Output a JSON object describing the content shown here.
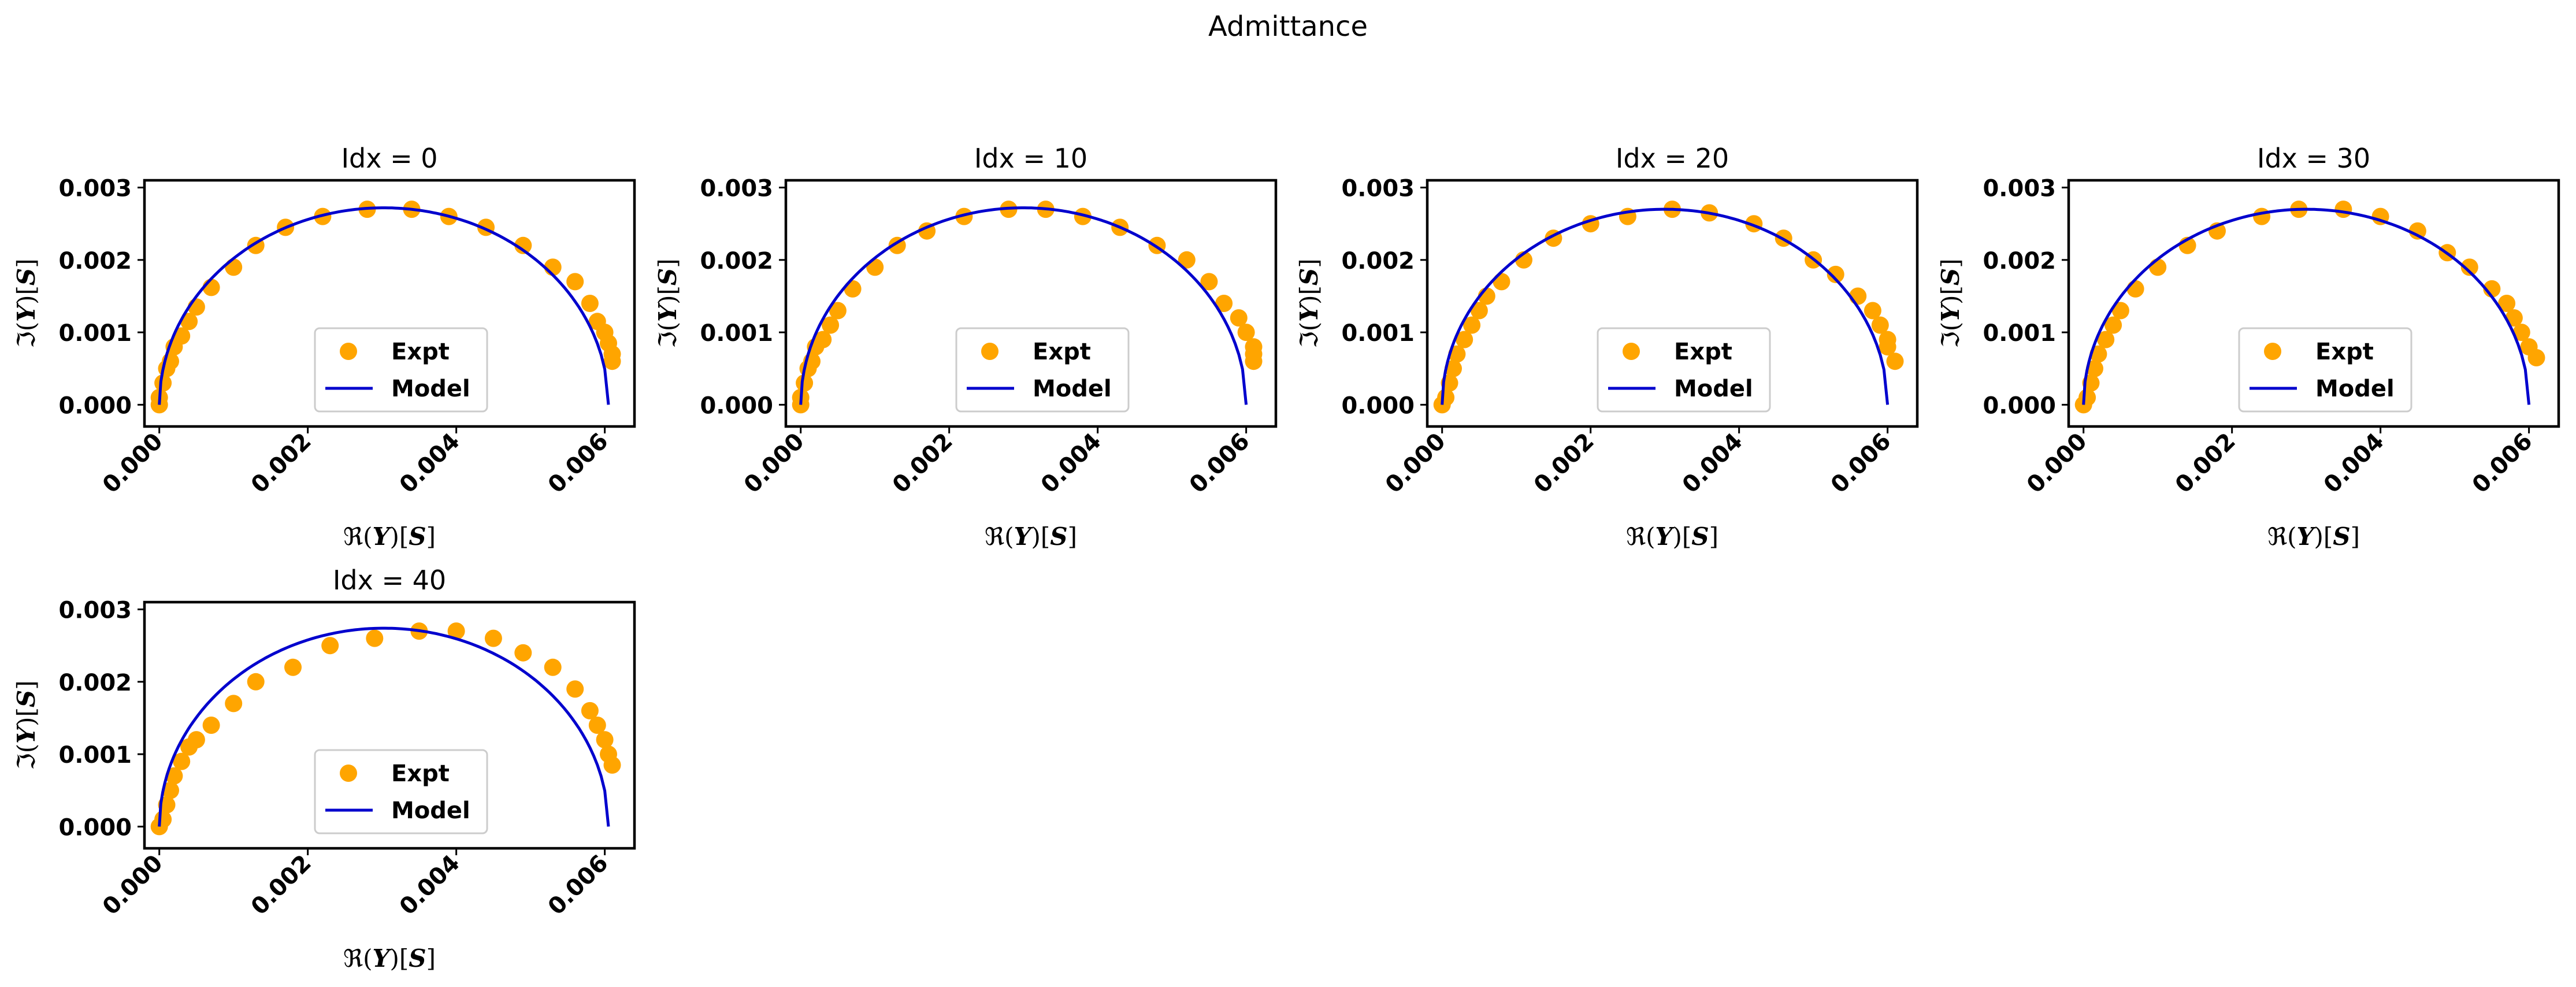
{
  "figure": {
    "title": "Admittance"
  },
  "colors": {
    "expt": "#FFA500",
    "model": "#0000CD",
    "axes": "#000000",
    "legend_border": "#cccccc"
  },
  "chart_data": [
    {
      "type": "scatter",
      "title": "Idx = 0",
      "xlabel": "ℜ(Y)[S]",
      "ylabel": "ℑ(Y)[S]",
      "xlim": [
        -0.0002,
        0.0064
      ],
      "ylim": [
        -0.0003,
        0.0031
      ],
      "xticks": [
        "0.000",
        "0.002",
        "0.004",
        "0.006"
      ],
      "yticks": [
        "0.000",
        "0.001",
        "0.002",
        "0.003"
      ],
      "legend": {
        "position": "lower-center",
        "entries": [
          "Expt",
          "Model"
        ]
      },
      "series": [
        {
          "name": "Expt",
          "kind": "points",
          "x": [
            0.0,
            0.0,
            5e-05,
            0.0001,
            0.00015,
            0.0002,
            0.0003,
            0.0004,
            0.0005,
            0.0007,
            0.001,
            0.0013,
            0.0017,
            0.0022,
            0.0028,
            0.0034,
            0.0039,
            0.0044,
            0.0049,
            0.0053,
            0.0056,
            0.0058,
            0.0059,
            0.006,
            0.00605,
            0.0061,
            0.0061
          ],
          "y": [
            0.0,
            0.0001,
            0.0003,
            0.0005,
            0.0006,
            0.0008,
            0.00095,
            0.00115,
            0.00135,
            0.00162,
            0.0019,
            0.0022,
            0.00245,
            0.0026,
            0.0027,
            0.0027,
            0.0026,
            0.00245,
            0.0022,
            0.0019,
            0.0017,
            0.0014,
            0.00115,
            0.001,
            0.00085,
            0.0007,
            0.0006
          ]
        },
        {
          "name": "Model",
          "kind": "line",
          "center": 0.003025,
          "radius": 0.003025,
          "y0": 0.00272,
          "x_end": 0.00605
        }
      ]
    },
    {
      "type": "scatter",
      "title": "Idx = 10",
      "xlabel": "ℜ(Y)[S]",
      "ylabel": "ℑ(Y)[S]",
      "xlim": [
        -0.0002,
        0.0064
      ],
      "ylim": [
        -0.0003,
        0.0031
      ],
      "xticks": [
        "0.000",
        "0.002",
        "0.004",
        "0.006"
      ],
      "yticks": [
        "0.000",
        "0.001",
        "0.002",
        "0.003"
      ],
      "legend": {
        "position": "lower-center",
        "entries": [
          "Expt",
          "Model"
        ]
      },
      "series": [
        {
          "name": "Expt",
          "kind": "points",
          "x": [
            0.0,
            0.0,
            5e-05,
            0.0001,
            0.00015,
            0.0002,
            0.0003,
            0.0004,
            0.0005,
            0.0007,
            0.001,
            0.0013,
            0.0017,
            0.0022,
            0.0028,
            0.0033,
            0.0038,
            0.0043,
            0.0048,
            0.0052,
            0.0055,
            0.0057,
            0.0059,
            0.006,
            0.0061,
            0.0061,
            0.0061
          ],
          "y": [
            0.0,
            0.0001,
            0.0003,
            0.0005,
            0.0006,
            0.0008,
            0.0009,
            0.0011,
            0.0013,
            0.0016,
            0.0019,
            0.0022,
            0.0024,
            0.0026,
            0.0027,
            0.0027,
            0.0026,
            0.00245,
            0.0022,
            0.002,
            0.0017,
            0.0014,
            0.0012,
            0.001,
            0.0008,
            0.0007,
            0.0006
          ]
        },
        {
          "name": "Model",
          "kind": "line",
          "center": 0.003,
          "radius": 0.003,
          "y0": 0.00272,
          "x_end": 0.006
        }
      ]
    },
    {
      "type": "scatter",
      "title": "Idx = 20",
      "xlabel": "ℜ(Y)[S]",
      "ylabel": "ℑ(Y)[S]",
      "xlim": [
        -0.0002,
        0.0064
      ],
      "ylim": [
        -0.0003,
        0.0031
      ],
      "xticks": [
        "0.000",
        "0.002",
        "0.004",
        "0.006"
      ],
      "yticks": [
        "0.000",
        "0.001",
        "0.002",
        "0.003"
      ],
      "legend": {
        "position": "lower-center",
        "entries": [
          "Expt",
          "Model"
        ]
      },
      "series": [
        {
          "name": "Expt",
          "kind": "points",
          "x": [
            0.0,
            5e-05,
            0.0001,
            0.00015,
            0.0002,
            0.0003,
            0.0004,
            0.0005,
            0.0006,
            0.0008,
            0.0011,
            0.0015,
            0.002,
            0.0025,
            0.0031,
            0.0036,
            0.0042,
            0.0046,
            0.005,
            0.0053,
            0.0056,
            0.0058,
            0.0059,
            0.006,
            0.006,
            0.0061
          ],
          "y": [
            0.0,
            0.0001,
            0.0003,
            0.0005,
            0.0007,
            0.0009,
            0.0011,
            0.0013,
            0.0015,
            0.0017,
            0.002,
            0.0023,
            0.0025,
            0.0026,
            0.0027,
            0.00265,
            0.0025,
            0.0023,
            0.002,
            0.0018,
            0.0015,
            0.0013,
            0.0011,
            0.0009,
            0.0008,
            0.0006
          ]
        },
        {
          "name": "Model",
          "kind": "line",
          "center": 0.003,
          "radius": 0.003,
          "y0": 0.0027,
          "x_end": 0.006
        }
      ]
    },
    {
      "type": "scatter",
      "title": "Idx = 30",
      "xlabel": "ℜ(Y)[S]",
      "ylabel": "ℑ(Y)[S]",
      "xlim": [
        -0.0002,
        0.0064
      ],
      "ylim": [
        -0.0003,
        0.0031
      ],
      "xticks": [
        "0.000",
        "0.002",
        "0.004",
        "0.006"
      ],
      "yticks": [
        "0.000",
        "0.001",
        "0.002",
        "0.003"
      ],
      "legend": {
        "position": "lower-center",
        "entries": [
          "Expt",
          "Model"
        ]
      },
      "series": [
        {
          "name": "Expt",
          "kind": "points",
          "x": [
            0.0,
            5e-05,
            0.0001,
            0.00015,
            0.0002,
            0.0003,
            0.0004,
            0.0005,
            0.0007,
            0.001,
            0.0014,
            0.0018,
            0.0024,
            0.0029,
            0.0035,
            0.004,
            0.0045,
            0.0049,
            0.0052,
            0.0055,
            0.0057,
            0.0058,
            0.0059,
            0.006,
            0.0061
          ],
          "y": [
            0.0,
            0.0001,
            0.0003,
            0.0005,
            0.0007,
            0.0009,
            0.0011,
            0.0013,
            0.0016,
            0.0019,
            0.0022,
            0.0024,
            0.0026,
            0.0027,
            0.0027,
            0.0026,
            0.0024,
            0.0021,
            0.0019,
            0.0016,
            0.0014,
            0.0012,
            0.001,
            0.0008,
            0.00065
          ]
        },
        {
          "name": "Model",
          "kind": "line",
          "center": 0.003,
          "radius": 0.003,
          "y0": 0.0027,
          "x_end": 0.006
        }
      ]
    },
    {
      "type": "scatter",
      "title": "Idx = 40",
      "xlabel": "ℜ(Y)[S]",
      "ylabel": "ℑ(Y)[S]",
      "xlim": [
        -0.0002,
        0.0064
      ],
      "ylim": [
        -0.0003,
        0.0031
      ],
      "xticks": [
        "0.000",
        "0.002",
        "0.004",
        "0.006"
      ],
      "yticks": [
        "0.000",
        "0.001",
        "0.002",
        "0.003"
      ],
      "legend": {
        "position": "lower-center",
        "entries": [
          "Expt",
          "Model"
        ]
      },
      "series": [
        {
          "name": "Expt",
          "kind": "points",
          "x": [
            0.0,
            5e-05,
            0.0001,
            0.00015,
            0.0002,
            0.0003,
            0.0004,
            0.0005,
            0.0007,
            0.001,
            0.0013,
            0.0018,
            0.0023,
            0.0029,
            0.0035,
            0.004,
            0.0045,
            0.0049,
            0.0053,
            0.0056,
            0.0058,
            0.0059,
            0.006,
            0.00605,
            0.0061
          ],
          "y": [
            0.0,
            0.0001,
            0.0003,
            0.0005,
            0.0007,
            0.0009,
            0.0011,
            0.0012,
            0.0014,
            0.0017,
            0.002,
            0.0022,
            0.0025,
            0.0026,
            0.0027,
            0.0027,
            0.0026,
            0.0024,
            0.0022,
            0.0019,
            0.0016,
            0.0014,
            0.0012,
            0.001,
            0.00085
          ]
        },
        {
          "name": "Model",
          "kind": "line",
          "center": 0.003025,
          "radius": 0.003025,
          "y0": 0.00274,
          "x_end": 0.00605
        }
      ]
    }
  ]
}
